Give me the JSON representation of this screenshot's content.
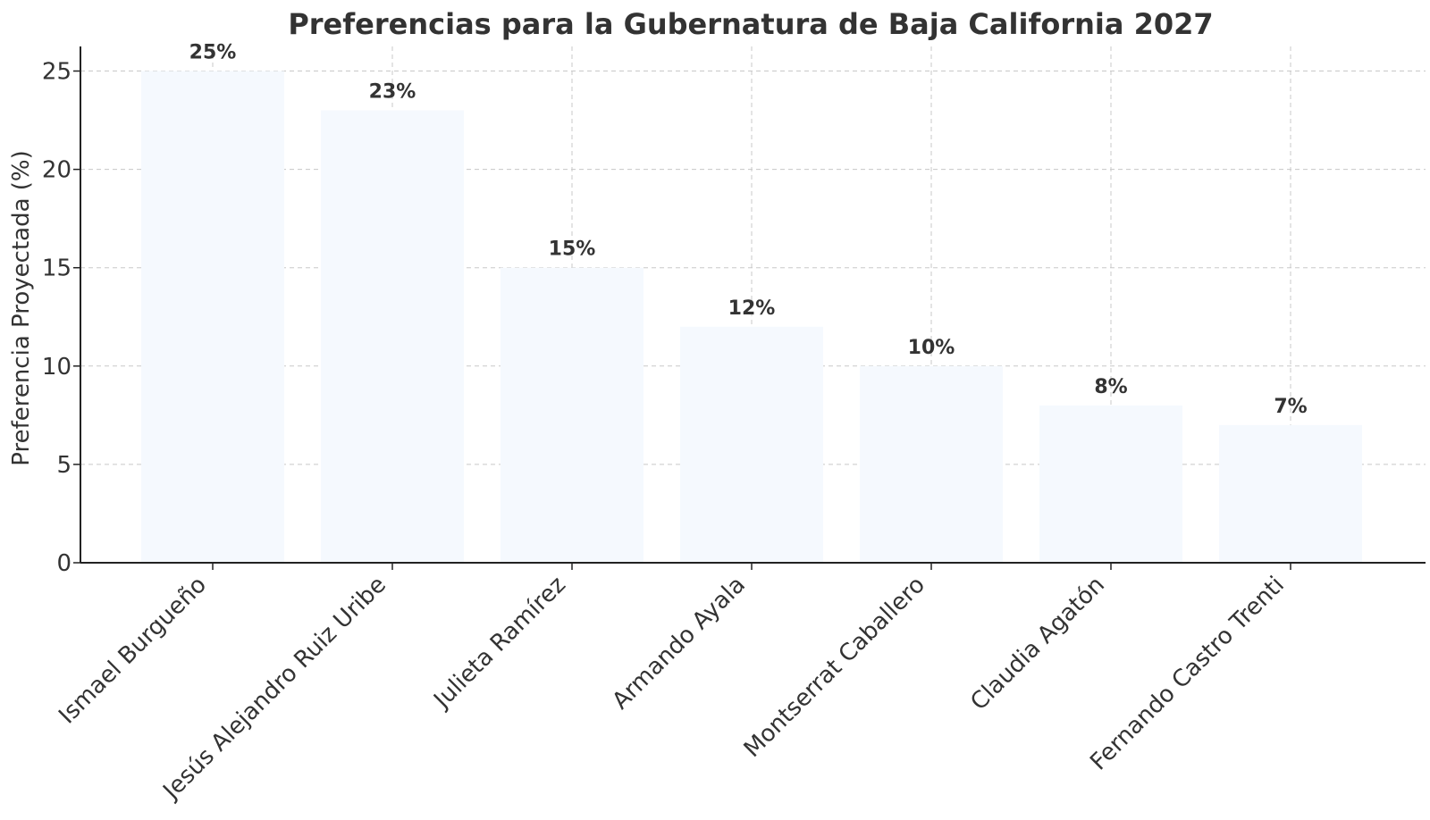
{
  "chart_data": {
    "type": "bar",
    "title": "Preferencias para la Gubernatura de Baja California 2027",
    "xlabel": "",
    "ylabel": "Preferencia Proyectada (%)",
    "categories": [
      "Ismael Burgueño",
      "Jesús Alejandro Ruiz Uribe",
      "Julieta Ramírez",
      "Armando Ayala",
      "Montserrat Caballero",
      "Claudia Agatón",
      "Fernando Castro Trenti"
    ],
    "values": [
      25,
      23,
      15,
      12,
      10,
      8,
      7
    ],
    "data_labels": [
      "25%",
      "23%",
      "15%",
      "12%",
      "10%",
      "8%",
      "7%"
    ],
    "ylim": [
      0,
      26.25
    ],
    "yticks": [
      0,
      5,
      10,
      15,
      20,
      25
    ],
    "grid": true,
    "legend": "none",
    "colors": {
      "bar": "#f5f9fe",
      "text": "#333333",
      "grid": "#c8c8c8",
      "axis": "#222222"
    }
  }
}
